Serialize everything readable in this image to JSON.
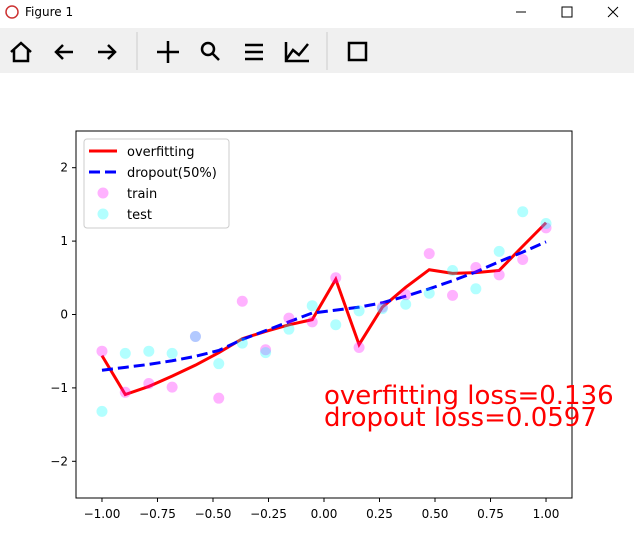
{
  "window": {
    "title": "Figure 1"
  },
  "chart_data": {
    "type": "line",
    "x": [
      -1.0,
      -0.895,
      -0.789,
      -0.684,
      -0.579,
      -0.474,
      -0.368,
      -0.263,
      -0.158,
      -0.053,
      0.053,
      0.158,
      0.263,
      0.368,
      0.474,
      0.579,
      0.684,
      0.789,
      0.895,
      1.0
    ],
    "series": [
      {
        "name": "overfitting",
        "style": "solid",
        "color": "#ff0000",
        "values": [
          -0.56,
          -1.09,
          -0.98,
          -0.84,
          -0.69,
          -0.52,
          -0.33,
          -0.23,
          -0.14,
          -0.07,
          0.48,
          -0.41,
          0.1,
          0.37,
          0.61,
          0.56,
          0.57,
          0.6,
          0.93,
          1.25
        ]
      },
      {
        "name": "dropout(50%)",
        "style": "dashed",
        "color": "#0000ff",
        "values": [
          -0.76,
          -0.72,
          -0.68,
          -0.63,
          -0.57,
          -0.49,
          -0.34,
          -0.22,
          -0.1,
          0.02,
          0.06,
          0.1,
          0.16,
          0.25,
          0.35,
          0.46,
          0.58,
          0.72,
          0.85,
          0.99
        ]
      },
      {
        "name": "train",
        "style": "scatter",
        "color": "#ff00ff",
        "values": [
          -0.5,
          -1.06,
          -0.94,
          -0.99,
          -0.3,
          -1.14,
          0.18,
          -0.48,
          -0.05,
          -0.1,
          0.5,
          -0.45,
          0.1,
          0.27,
          0.83,
          0.26,
          0.64,
          0.54,
          0.75,
          1.18
        ]
      },
      {
        "name": "test",
        "style": "scatter",
        "color": "#00ffff",
        "values": [
          -1.32,
          -0.53,
          -0.5,
          -0.53,
          -0.3,
          -0.67,
          -0.39,
          -0.52,
          -0.2,
          0.12,
          -0.14,
          0.05,
          0.08,
          0.14,
          0.29,
          0.6,
          0.35,
          0.86,
          1.4,
          1.24
        ]
      }
    ],
    "xlim": [
      -1.117,
      1.117
    ],
    "ylim": [
      -2.5,
      2.5
    ],
    "xticks": [
      {
        "value": -1.0,
        "label": "−1.00"
      },
      {
        "value": -0.75,
        "label": "−0.75"
      },
      {
        "value": -0.5,
        "label": "−0.50"
      },
      {
        "value": -0.25,
        "label": "−0.25"
      },
      {
        "value": 0,
        "label": "0.00"
      },
      {
        "value": 0.25,
        "label": "0.25"
      },
      {
        "value": 0.5,
        "label": "0.50"
      },
      {
        "value": 0.75,
        "label": "0.75"
      },
      {
        "value": 1.0,
        "label": "1.00"
      }
    ],
    "yticks": [
      {
        "value": -2,
        "label": "−2"
      },
      {
        "value": -1,
        "label": "−1"
      },
      0,
      1,
      2
    ],
    "legend": "upper left",
    "annotations": [
      "overfitting loss=0.136",
      "dropout loss=0.0597"
    ],
    "annotation_color": "#ff0000"
  }
}
